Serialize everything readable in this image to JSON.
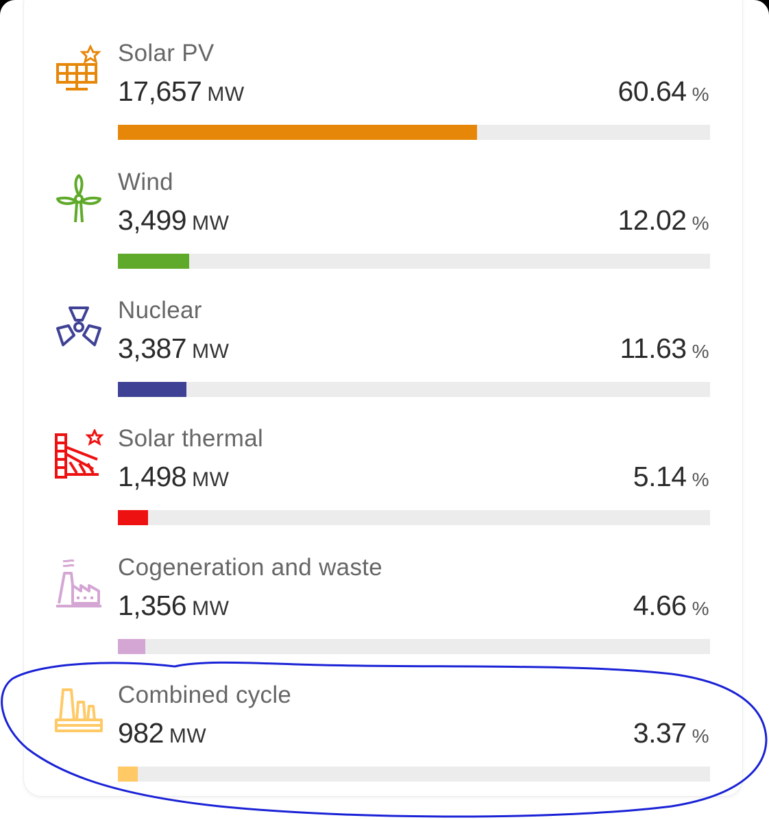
{
  "items": [
    {
      "name": "Solar PV",
      "value": "17,657",
      "unit": "MW",
      "percent": "60.64",
      "percent_unit": "%",
      "share": 0.6064,
      "color": "#e6870a",
      "icon": "solar-panel-icon"
    },
    {
      "name": "Wind",
      "value": "3,499",
      "unit": "MW",
      "percent": "12.02",
      "percent_unit": "%",
      "share": 0.1202,
      "color": "#5faa2a",
      "icon": "wind-turbine-icon"
    },
    {
      "name": "Nuclear",
      "value": "3,387",
      "unit": "MW",
      "percent": "11.63",
      "percent_unit": "%",
      "share": 0.1163,
      "color": "#3f4195",
      "icon": "nuclear-icon"
    },
    {
      "name": "Solar thermal",
      "value": "1,498",
      "unit": "MW",
      "percent": "5.14",
      "percent_unit": "%",
      "share": 0.0514,
      "color": "#ee1111",
      "icon": "solar-thermal-icon"
    },
    {
      "name": "Cogeneration and waste",
      "value": "1,356",
      "unit": "MW",
      "percent": "4.66",
      "percent_unit": "%",
      "share": 0.0466,
      "color": "#d4a6d4",
      "icon": "cogeneration-factory-icon"
    },
    {
      "name": "Combined cycle",
      "value": "982",
      "unit": "MW",
      "percent": "3.37",
      "percent_unit": "%",
      "share": 0.0337,
      "color": "#ffc966",
      "icon": "combined-cycle-plant-icon"
    }
  ],
  "annotation": {
    "color": "#1a22d6"
  }
}
